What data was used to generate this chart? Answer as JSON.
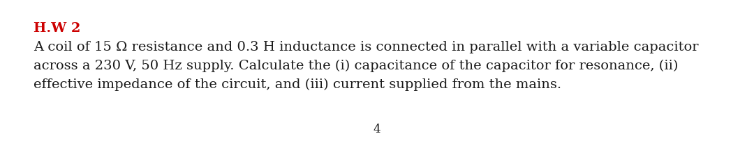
{
  "title": "H.W 2",
  "title_color": "#cc0000",
  "title_fontsize": 14,
  "title_bold": true,
  "body_lines": [
    "A coil of 15 Ω resistance and 0.3 H inductance is connected in parallel with a variable capacitor",
    "across a 230 V, 50 Hz supply. Calculate the (i) capacitance of the capacitor for resonance, (ii)",
    "effective impedance of the circuit, and (iii) current supplied from the mains."
  ],
  "body_fontsize": 14,
  "body_color": "#1a1a1a",
  "footer_text": "4",
  "footer_fontsize": 12,
  "footer_color": "#1a1a1a",
  "background_color": "#ffffff",
  "fig_width": 10.8,
  "fig_height": 2.07,
  "dpi": 100
}
